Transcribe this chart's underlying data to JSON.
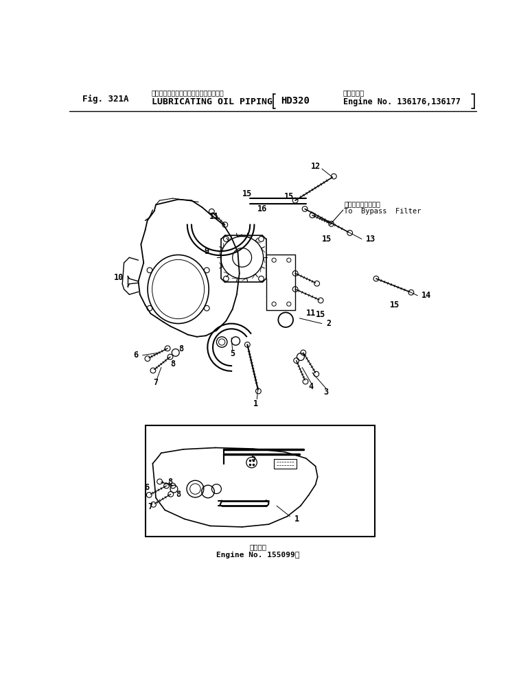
{
  "title_japanese": "ルーブリケーティングオイルパイピング",
  "title_english": "LUBRICATING OIL PIPING",
  "fig_label": "Fig. 321A",
  "model": "HD320",
  "applicability_japanese": "適用号機・",
  "engine_no": "Engine No. 136176,136177",
  "engine_no2": "Engine No. 155099～",
  "applicability_japanese2": "適用号機",
  "bypass_japanese": "バイパスフィルタヘ",
  "bypass_english": "To  Bypass  Filter",
  "bg_color": "#ffffff",
  "line_color": "#000000"
}
